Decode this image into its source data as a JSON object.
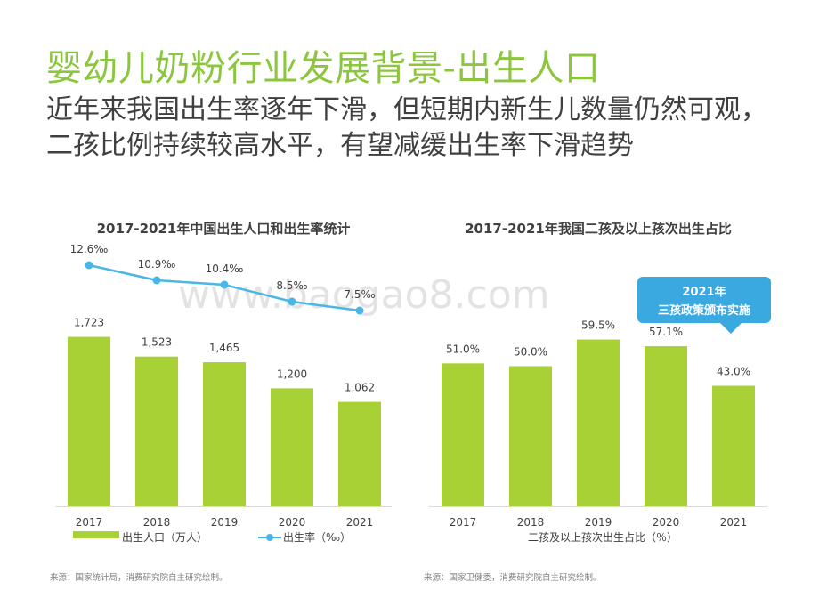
{
  "header": {
    "title": "婴幼儿奶粉行业发展背景-出生人口",
    "subtitle_line1": "近年来我国出生率逐年下滑，但短期内新生儿数量仍然可观，",
    "subtitle_line2": "二孩比例持续较高水平，有望减缓出生率下滑趋势"
  },
  "watermark": "www.baogao8.com",
  "colors": {
    "title": "#8cc63f",
    "bar": "#a8d136",
    "line": "#49b6e8",
    "callout": "#3aa9e0",
    "text": "#404040"
  },
  "chart_data": [
    {
      "type": "bar",
      "title": "2017-2021年中国出生人口和出生率统计",
      "categories": [
        "2017",
        "2018",
        "2019",
        "2020",
        "2021"
      ],
      "series": [
        {
          "name": "出生人口（万人）",
          "type": "bar",
          "values": [
            1723,
            1523,
            1465,
            1200,
            1062
          ],
          "labels": [
            "1,723",
            "1,523",
            "1,465",
            "1,200",
            "1,062"
          ]
        },
        {
          "name": "出生率（‰）",
          "type": "line",
          "values": [
            12.6,
            10.9,
            10.4,
            8.5,
            7.5
          ],
          "labels": [
            "12.6‰",
            "10.9‰",
            "10.4‰",
            "8.5‰",
            "7.5‰"
          ]
        }
      ],
      "bar_ylim": [
        0,
        1900
      ],
      "line_ylim": [
        5.0,
        16.0
      ],
      "source": "来源：国家统计局，消费研究院自主研究绘制。"
    },
    {
      "type": "bar",
      "title": "2017-2021年我国二孩及以上孩次出生占比",
      "categories": [
        "2017",
        "2018",
        "2019",
        "2020",
        "2021"
      ],
      "series": [
        {
          "name": "二孩及以上孩次出生占比（％）",
          "values": [
            51.0,
            50.0,
            59.5,
            57.1,
            43.0
          ],
          "labels": [
            "51.0%",
            "50.0%",
            "59.5%",
            "57.1%",
            "43.0%"
          ]
        }
      ],
      "ylim": [
        0,
        73
      ],
      "callout": {
        "line1": "2021年",
        "line2": "三孩政策颁布实施"
      },
      "source": "来源：国家卫健委，消费研究院自主研究绘制。"
    }
  ]
}
